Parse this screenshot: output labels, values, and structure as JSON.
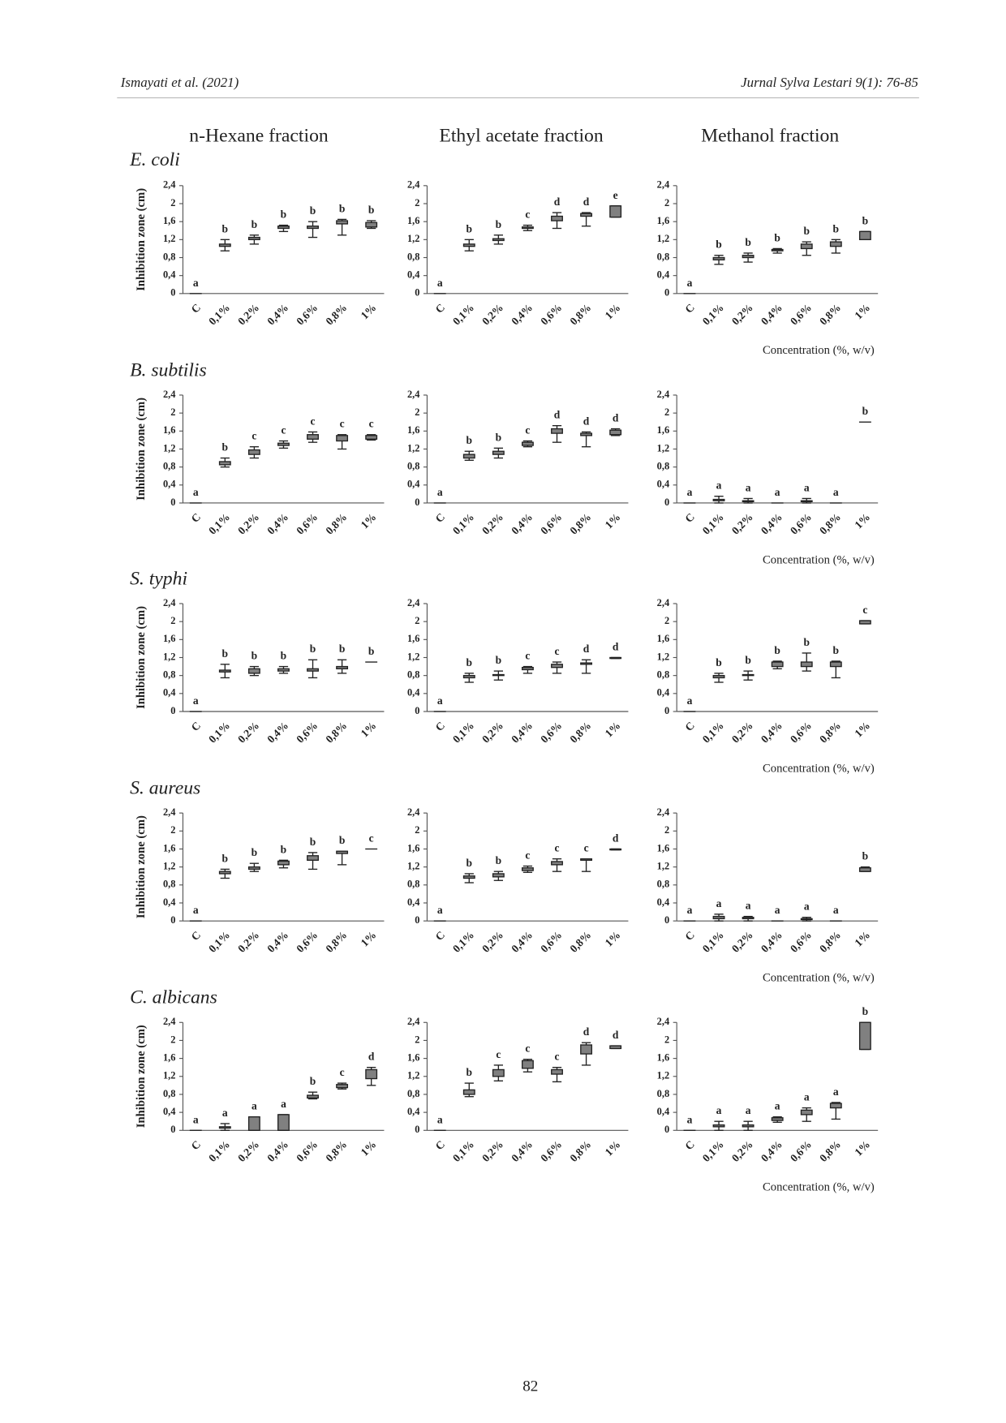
{
  "header": {
    "left": "Ismayati et al. (2021)",
    "right": "Jurnal Sylva Lestari 9(1): 76-85"
  },
  "column_titles": [
    "n-Hexane fraction",
    "Ethyl acetate fraction",
    "Methanol fraction"
  ],
  "row_titles": [
    "E. coli",
    "B. subtilis",
    "S. typhi",
    "S. aureus",
    "C. albicans"
  ],
  "page_number": "82",
  "chart_data": [
    {
      "type": "box",
      "ylabel": "Inhibition zone (cm)",
      "categories": [
        "C",
        "0,1%",
        "0,2%",
        "0,4%",
        "0,6%",
        "0,8%",
        "1%"
      ],
      "ylim": [
        0,
        2.4
      ],
      "yticks": [
        0,
        {
          "value": 0.4,
          "label": "0,4"
        },
        {
          "value": 0.8,
          "label": "0,8"
        },
        {
          "value": 1.2,
          "label": "1,2"
        },
        {
          "value": 1.6,
          "label": "1,6"
        },
        2,
        {
          "value": 2.4,
          "label": "2,4"
        }
      ],
      "color": "#808080",
      "whisker_low": [
        0,
        0.95,
        1.1,
        1.38,
        1.25,
        1.3,
        1.45
      ],
      "q1": [
        0,
        1.05,
        1.2,
        1.45,
        1.45,
        1.55,
        1.48
      ],
      "q3": [
        0,
        1.1,
        1.25,
        1.5,
        1.5,
        1.62,
        1.58
      ],
      "whisker_high": [
        0,
        1.2,
        1.3,
        1.52,
        1.6,
        1.65,
        1.62
      ],
      "letters": [
        "a",
        "b",
        "b",
        "b",
        "b",
        "b",
        "b"
      ]
    },
    {
      "type": "box",
      "categories": [
        "C",
        "0,1%",
        "0,2%",
        "0,4%",
        "0,6%",
        "0,8%",
        "1%"
      ],
      "ylim": [
        0,
        2.4
      ],
      "yticks": [
        0,
        {
          "value": 0.4,
          "label": "0,4"
        },
        {
          "value": 0.8,
          "label": "0,8"
        },
        {
          "value": 1.2,
          "label": "1,2"
        },
        {
          "value": 1.6,
          "label": "1,6"
        },
        2,
        {
          "value": 2.4,
          "label": "2,4"
        }
      ],
      "color": "#808080",
      "whisker_low": [
        0,
        0.95,
        1.1,
        1.4,
        1.45,
        1.5,
        1.7
      ],
      "q1": [
        0,
        1.05,
        1.18,
        1.45,
        1.62,
        1.72,
        1.7
      ],
      "q3": [
        0,
        1.1,
        1.22,
        1.48,
        1.72,
        1.78,
        1.95
      ],
      "whisker_high": [
        0,
        1.2,
        1.3,
        1.52,
        1.8,
        1.8,
        1.95
      ],
      "letters": [
        "a",
        "b",
        "b",
        "c",
        "d",
        "d",
        "e"
      ]
    },
    {
      "type": "box",
      "xlabel": "Concentration (%, w/v)",
      "categories": [
        "C",
        "0,1%",
        "0,2%",
        "0,4%",
        "0,6%",
        "0,8%",
        "1%"
      ],
      "ylim": [
        0,
        2.4
      ],
      "yticks": [
        0,
        {
          "value": 0.4,
          "label": "0,4"
        },
        {
          "value": 0.8,
          "label": "0,8"
        },
        {
          "value": 1.2,
          "label": "1,2"
        },
        {
          "value": 1.6,
          "label": "1,6"
        },
        2,
        {
          "value": 2.4,
          "label": "2,4"
        }
      ],
      "color": "#808080",
      "whisker_low": [
        0,
        0.65,
        0.7,
        0.9,
        0.85,
        0.9,
        1.2
      ],
      "q1": [
        0,
        0.75,
        0.8,
        0.95,
        1.0,
        1.05,
        1.2
      ],
      "q3": [
        0,
        0.8,
        0.85,
        0.98,
        1.1,
        1.15,
        1.38
      ],
      "whisker_high": [
        0,
        0.85,
        0.9,
        1.0,
        1.15,
        1.2,
        1.38
      ],
      "letters": [
        "a",
        "b",
        "b",
        "b",
        "b",
        "b",
        "b"
      ]
    },
    {
      "type": "box",
      "ylabel": "Inhibition zone (cm)",
      "categories": [
        "C",
        "0,1%",
        "0,2%",
        "0,4%",
        "0,6%",
        "0,8%",
        "1%"
      ],
      "ylim": [
        0,
        2.4
      ],
      "yticks": [
        0,
        {
          "value": 0.4,
          "label": "0,4"
        },
        {
          "value": 0.8,
          "label": "0,8"
        },
        {
          "value": 1.2,
          "label": "1,2"
        },
        {
          "value": 1.6,
          "label": "1,6"
        },
        2,
        {
          "value": 2.4,
          "label": "2,4"
        }
      ],
      "color": "#808080",
      "whisker_low": [
        0,
        0.8,
        1.0,
        1.22,
        1.35,
        1.2,
        1.4
      ],
      "q1": [
        0,
        0.85,
        1.08,
        1.28,
        1.42,
        1.38,
        1.42
      ],
      "q3": [
        0,
        0.92,
        1.18,
        1.33,
        1.52,
        1.5,
        1.5
      ],
      "whisker_high": [
        0,
        1.0,
        1.25,
        1.38,
        1.58,
        1.52,
        1.52
      ],
      "letters": [
        "a",
        "b",
        "c",
        "c",
        "c",
        "c",
        "c"
      ]
    },
    {
      "type": "box",
      "categories": [
        "C",
        "0,1%",
        "0,2%",
        "0,4%",
        "0,6%",
        "0,8%",
        "1%"
      ],
      "ylim": [
        0,
        2.4
      ],
      "yticks": [
        0,
        {
          "value": 0.4,
          "label": "0,4"
        },
        {
          "value": 0.8,
          "label": "0,8"
        },
        {
          "value": 1.2,
          "label": "1,2"
        },
        {
          "value": 1.6,
          "label": "1,6"
        },
        2,
        {
          "value": 2.4,
          "label": "2,4"
        }
      ],
      "color": "#808080",
      "whisker_low": [
        0,
        0.95,
        1.0,
        1.25,
        1.35,
        1.25,
        1.5
      ],
      "q1": [
        0,
        1.0,
        1.08,
        1.28,
        1.55,
        1.5,
        1.52
      ],
      "q3": [
        0,
        1.08,
        1.15,
        1.35,
        1.65,
        1.55,
        1.62
      ],
      "whisker_high": [
        0,
        1.15,
        1.22,
        1.38,
        1.72,
        1.58,
        1.65
      ],
      "letters": [
        "a",
        "b",
        "b",
        "c",
        "d",
        "d",
        "d"
      ]
    },
    {
      "type": "box",
      "xlabel": "Concentration (%, w/v)",
      "categories": [
        "C",
        "0,1%",
        "0,2%",
        "0,4%",
        "0,6%",
        "0,8%",
        "1%"
      ],
      "ylim": [
        0,
        2.4
      ],
      "yticks": [
        0,
        {
          "value": 0.4,
          "label": "0,4"
        },
        {
          "value": 0.8,
          "label": "0,8"
        },
        {
          "value": 1.2,
          "label": "1,2"
        },
        {
          "value": 1.6,
          "label": "1,6"
        },
        2,
        {
          "value": 2.4,
          "label": "2,4"
        }
      ],
      "color": "#808080",
      "whisker_low": [
        0,
        0,
        0,
        0,
        0,
        0,
        1.8
      ],
      "q1": [
        0,
        0.05,
        0.03,
        0,
        0.03,
        0,
        1.8
      ],
      "q3": [
        0,
        0.08,
        0.05,
        0,
        0.05,
        0,
        1.8
      ],
      "whisker_high": [
        0,
        0.15,
        0.1,
        0,
        0.1,
        0,
        1.8
      ],
      "letters": [
        "a",
        "a",
        "a",
        "a",
        "a",
        "a",
        "b"
      ]
    },
    {
      "type": "box",
      "ylabel": "Inhibition zone (cm)",
      "categories": [
        "C",
        "0,1%",
        "0,2%",
        "0,4%",
        "0,6%",
        "0,8%",
        "1%"
      ],
      "ylim": [
        0,
        2.4
      ],
      "yticks": [
        0,
        {
          "value": 0.4,
          "label": "0,4"
        },
        {
          "value": 0.8,
          "label": "0,8"
        },
        {
          "value": 1.2,
          "label": "1,2"
        },
        {
          "value": 1.6,
          "label": "1,6"
        },
        2,
        {
          "value": 2.4,
          "label": "2,4"
        }
      ],
      "color": "#808080",
      "whisker_low": [
        0,
        0.75,
        0.8,
        0.85,
        0.75,
        0.85,
        1.1
      ],
      "q1": [
        0,
        0.88,
        0.85,
        0.9,
        0.9,
        0.95,
        1.1
      ],
      "q3": [
        0,
        0.92,
        0.95,
        0.95,
        0.95,
        1.0,
        1.1
      ],
      "whisker_high": [
        0,
        1.05,
        1.0,
        1.0,
        1.15,
        1.15,
        1.1
      ],
      "letters": [
        "a",
        "b",
        "b",
        "b",
        "b",
        "b",
        "b"
      ]
    },
    {
      "type": "box",
      "categories": [
        "C",
        "0,1%",
        "0,2%",
        "0,4%",
        "0,6%",
        "0,8%",
        "1%"
      ],
      "ylim": [
        0,
        2.4
      ],
      "yticks": [
        0,
        {
          "value": 0.4,
          "label": "0,4"
        },
        {
          "value": 0.8,
          "label": "0,8"
        },
        {
          "value": 1.2,
          "label": "1,2"
        },
        {
          "value": 1.6,
          "label": "1,6"
        },
        2,
        {
          "value": 2.4,
          "label": "2,4"
        }
      ],
      "color": "#808080",
      "whisker_low": [
        0,
        0.65,
        0.7,
        0.85,
        0.85,
        0.85,
        1.18
      ],
      "q1": [
        0,
        0.75,
        0.8,
        0.93,
        0.98,
        1.05,
        1.18
      ],
      "q3": [
        0,
        0.8,
        0.82,
        0.98,
        1.05,
        1.08,
        1.2
      ],
      "whisker_high": [
        0,
        0.85,
        0.9,
        1.0,
        1.1,
        1.15,
        1.2
      ],
      "letters": [
        "a",
        "b",
        "b",
        "c",
        "c",
        "d",
        "d"
      ]
    },
    {
      "type": "box",
      "xlabel": "Concentration (%, w/v)",
      "categories": [
        "C",
        "0,1%",
        "0,2%",
        "0,4%",
        "0,6%",
        "0,8%",
        "1%"
      ],
      "ylim": [
        0,
        2.4
      ],
      "yticks": [
        0,
        {
          "value": 0.4,
          "label": "0,4"
        },
        {
          "value": 0.8,
          "label": "0,8"
        },
        {
          "value": 1.2,
          "label": "1,2"
        },
        {
          "value": 1.6,
          "label": "1,6"
        },
        2,
        {
          "value": 2.4,
          "label": "2,4"
        }
      ],
      "color": "#808080",
      "whisker_low": [
        0,
        0.65,
        0.7,
        0.95,
        0.9,
        0.75,
        1.95
      ],
      "q1": [
        0,
        0.75,
        0.8,
        1.0,
        1.0,
        1.0,
        1.95
      ],
      "q3": [
        0,
        0.8,
        0.82,
        1.1,
        1.1,
        1.1,
        2.02
      ],
      "whisker_high": [
        0,
        0.85,
        0.9,
        1.12,
        1.3,
        1.12,
        2.02
      ],
      "letters": [
        "a",
        "b",
        "b",
        "b",
        "b",
        "b",
        "c"
      ]
    },
    {
      "type": "box",
      "ylabel": "Inhibition zone (cm)",
      "categories": [
        "C",
        "0,1%",
        "0,2%",
        "0,4%",
        "0,6%",
        "0,8%",
        "1%"
      ],
      "ylim": [
        0,
        2.4
      ],
      "yticks": [
        0,
        {
          "value": 0.4,
          "label": "0,4"
        },
        {
          "value": 0.8,
          "label": "0,8"
        },
        {
          "value": 1.2,
          "label": "1,2"
        },
        {
          "value": 1.6,
          "label": "1,6"
        },
        2,
        {
          "value": 2.4,
          "label": "2,4"
        }
      ],
      "color": "#808080",
      "whisker_low": [
        0,
        0.95,
        1.1,
        1.18,
        1.15,
        1.25,
        1.6
      ],
      "q1": [
        0,
        1.05,
        1.15,
        1.25,
        1.35,
        1.5,
        1.6
      ],
      "q3": [
        0,
        1.1,
        1.2,
        1.33,
        1.45,
        1.55,
        1.6
      ],
      "whisker_high": [
        0,
        1.15,
        1.28,
        1.35,
        1.52,
        1.55,
        1.6
      ],
      "letters": [
        "a",
        "b",
        "b",
        "b",
        "b",
        "b",
        "c"
      ]
    },
    {
      "type": "box",
      "categories": [
        "C",
        "0,1%",
        "0,2%",
        "0,4%",
        "0,6%",
        "0,8%",
        "1%"
      ],
      "ylim": [
        0,
        2.4
      ],
      "yticks": [
        0,
        {
          "value": 0.4,
          "label": "0,4"
        },
        {
          "value": 0.8,
          "label": "0,8"
        },
        {
          "value": 1.2,
          "label": "1,2"
        },
        {
          "value": 1.6,
          "label": "1,6"
        },
        2,
        {
          "value": 2.4,
          "label": "2,4"
        }
      ],
      "color": "#808080",
      "whisker_low": [
        0,
        0.85,
        0.9,
        1.08,
        1.1,
        1.1,
        1.58
      ],
      "q1": [
        0,
        0.95,
        0.98,
        1.12,
        1.25,
        1.35,
        1.58
      ],
      "q3": [
        0,
        1.0,
        1.05,
        1.18,
        1.32,
        1.38,
        1.6
      ],
      "whisker_high": [
        0,
        1.05,
        1.1,
        1.22,
        1.38,
        1.38,
        1.6
      ],
      "letters": [
        "a",
        "b",
        "b",
        "c",
        "c",
        "c",
        "d"
      ]
    },
    {
      "type": "box",
      "xlabel": "Concentration (%, w/v)",
      "categories": [
        "C",
        "0,1%",
        "0,2%",
        "0,4%",
        "0,6%",
        "0,8%",
        "1%"
      ],
      "ylim": [
        0,
        2.4
      ],
      "yticks": [
        0,
        {
          "value": 0.4,
          "label": "0,4"
        },
        {
          "value": 0.8,
          "label": "0,8"
        },
        {
          "value": 1.2,
          "label": "1,2"
        },
        {
          "value": 1.6,
          "label": "1,6"
        },
        2,
        {
          "value": 2.4,
          "label": "2,4"
        }
      ],
      "color": "#808080",
      "whisker_low": [
        0,
        0,
        0,
        0,
        0,
        0,
        1.1
      ],
      "q1": [
        0,
        0.05,
        0.05,
        0,
        0.03,
        0,
        1.1
      ],
      "q3": [
        0,
        0.1,
        0.08,
        0,
        0.05,
        0,
        1.18
      ],
      "whisker_high": [
        0,
        0.15,
        0.1,
        0,
        0.08,
        0,
        1.2
      ],
      "letters": [
        "a",
        "a",
        "a",
        "a",
        "a",
        "a",
        "b"
      ]
    },
    {
      "type": "box",
      "ylabel": "Inhibition zone (cm)",
      "categories": [
        "C",
        "0,1%",
        "0,2%",
        "0,4%",
        "0,6%",
        "0,8%",
        "1%"
      ],
      "ylim": [
        0,
        2.4
      ],
      "yticks": [
        0,
        {
          "value": 0.4,
          "label": "0,4"
        },
        {
          "value": 0.8,
          "label": "0,8"
        },
        {
          "value": 1.2,
          "label": "1,2"
        },
        {
          "value": 1.6,
          "label": "1,6"
        },
        2,
        {
          "value": 2.4,
          "label": "2,4"
        }
      ],
      "color": "#808080",
      "whisker_low": [
        0,
        0,
        0,
        0,
        0.7,
        0.92,
        1.0
      ],
      "q1": [
        0,
        0.05,
        0,
        0,
        0.72,
        0.95,
        1.15
      ],
      "q3": [
        0,
        0.08,
        0.3,
        0.35,
        0.78,
        1.02,
        1.35
      ],
      "whisker_high": [
        0,
        0.15,
        0.3,
        0.35,
        0.85,
        1.05,
        1.4
      ],
      "letters": [
        "a",
        "a",
        "a",
        "a",
        "b",
        "c",
        "d"
      ]
    },
    {
      "type": "box",
      "categories": [
        "C",
        "0,1%",
        "0,2%",
        "0,4%",
        "0,6%",
        "0,8%",
        "1%"
      ],
      "ylim": [
        0,
        2.4
      ],
      "yticks": [
        0,
        {
          "value": 0.4,
          "label": "0,4"
        },
        {
          "value": 0.8,
          "label": "0,8"
        },
        {
          "value": 1.2,
          "label": "1,2"
        },
        {
          "value": 1.6,
          "label": "1,6"
        },
        2,
        {
          "value": 2.4,
          "label": "2,4"
        }
      ],
      "color": "#808080",
      "whisker_low": [
        0,
        0.75,
        1.1,
        1.3,
        1.08,
        1.45,
        1.82
      ],
      "q1": [
        0,
        0.8,
        1.2,
        1.38,
        1.25,
        1.7,
        1.82
      ],
      "q3": [
        0,
        0.9,
        1.35,
        1.55,
        1.35,
        1.9,
        1.88
      ],
      "whisker_high": [
        0,
        1.05,
        1.45,
        1.58,
        1.4,
        1.95,
        1.88
      ],
      "letters": [
        "a",
        "b",
        "c",
        "c",
        "c",
        "d",
        "d"
      ]
    },
    {
      "type": "box",
      "xlabel": "Concentration (%, w/v)",
      "categories": [
        "C",
        "0,1%",
        "0,2%",
        "0,4%",
        "0,6%",
        "0,8%",
        "1%"
      ],
      "ylim": [
        0,
        2.4
      ],
      "yticks": [
        0,
        {
          "value": 0.4,
          "label": "0,4"
        },
        {
          "value": 0.8,
          "label": "0,8"
        },
        {
          "value": 1.2,
          "label": "1,2"
        },
        {
          "value": 1.6,
          "label": "1,6"
        },
        2,
        {
          "value": 2.4,
          "label": "2,4"
        }
      ],
      "color": "#808080",
      "whisker_low": [
        0,
        0,
        0,
        0.18,
        0.2,
        0.25,
        1.8
      ],
      "q1": [
        0,
        0.08,
        0.08,
        0.22,
        0.35,
        0.5,
        1.8
      ],
      "q3": [
        0,
        0.12,
        0.12,
        0.28,
        0.45,
        0.6,
        2.4
      ],
      "whisker_high": [
        0,
        0.2,
        0.2,
        0.3,
        0.5,
        0.62,
        2.4
      ],
      "letters": [
        "a",
        "a",
        "a",
        "a",
        "a",
        "a",
        "b"
      ]
    }
  ]
}
